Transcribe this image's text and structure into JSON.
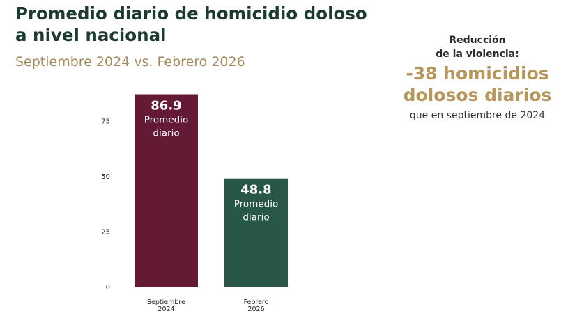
{
  "header": {
    "title_line1": "Promedio diario de homicidio doloso",
    "title_line2": "a nivel nacional",
    "subtitle": "Septiembre 2024 vs. Febrero 2026"
  },
  "callout": {
    "title_line1": "Reducción",
    "title_line2": "de la violencia:",
    "number_line1": "-38 homicidios",
    "number_line2": "dolosos diarios",
    "note": "que en septiembre de 2024"
  },
  "chart_data": {
    "type": "bar",
    "categories": [
      [
        "Septiembre",
        "2024"
      ],
      [
        "Febrero",
        "2026"
      ]
    ],
    "values": [
      86.9,
      48.8
    ],
    "value_labels": [
      "86.9",
      "48.8"
    ],
    "bar_sublabel": [
      "Promedio",
      "diario"
    ],
    "colors": [
      "#641a34",
      "#285747"
    ],
    "yticks": [
      0,
      25,
      50,
      75
    ],
    "ylim": [
      0,
      88
    ],
    "grid": false
  }
}
